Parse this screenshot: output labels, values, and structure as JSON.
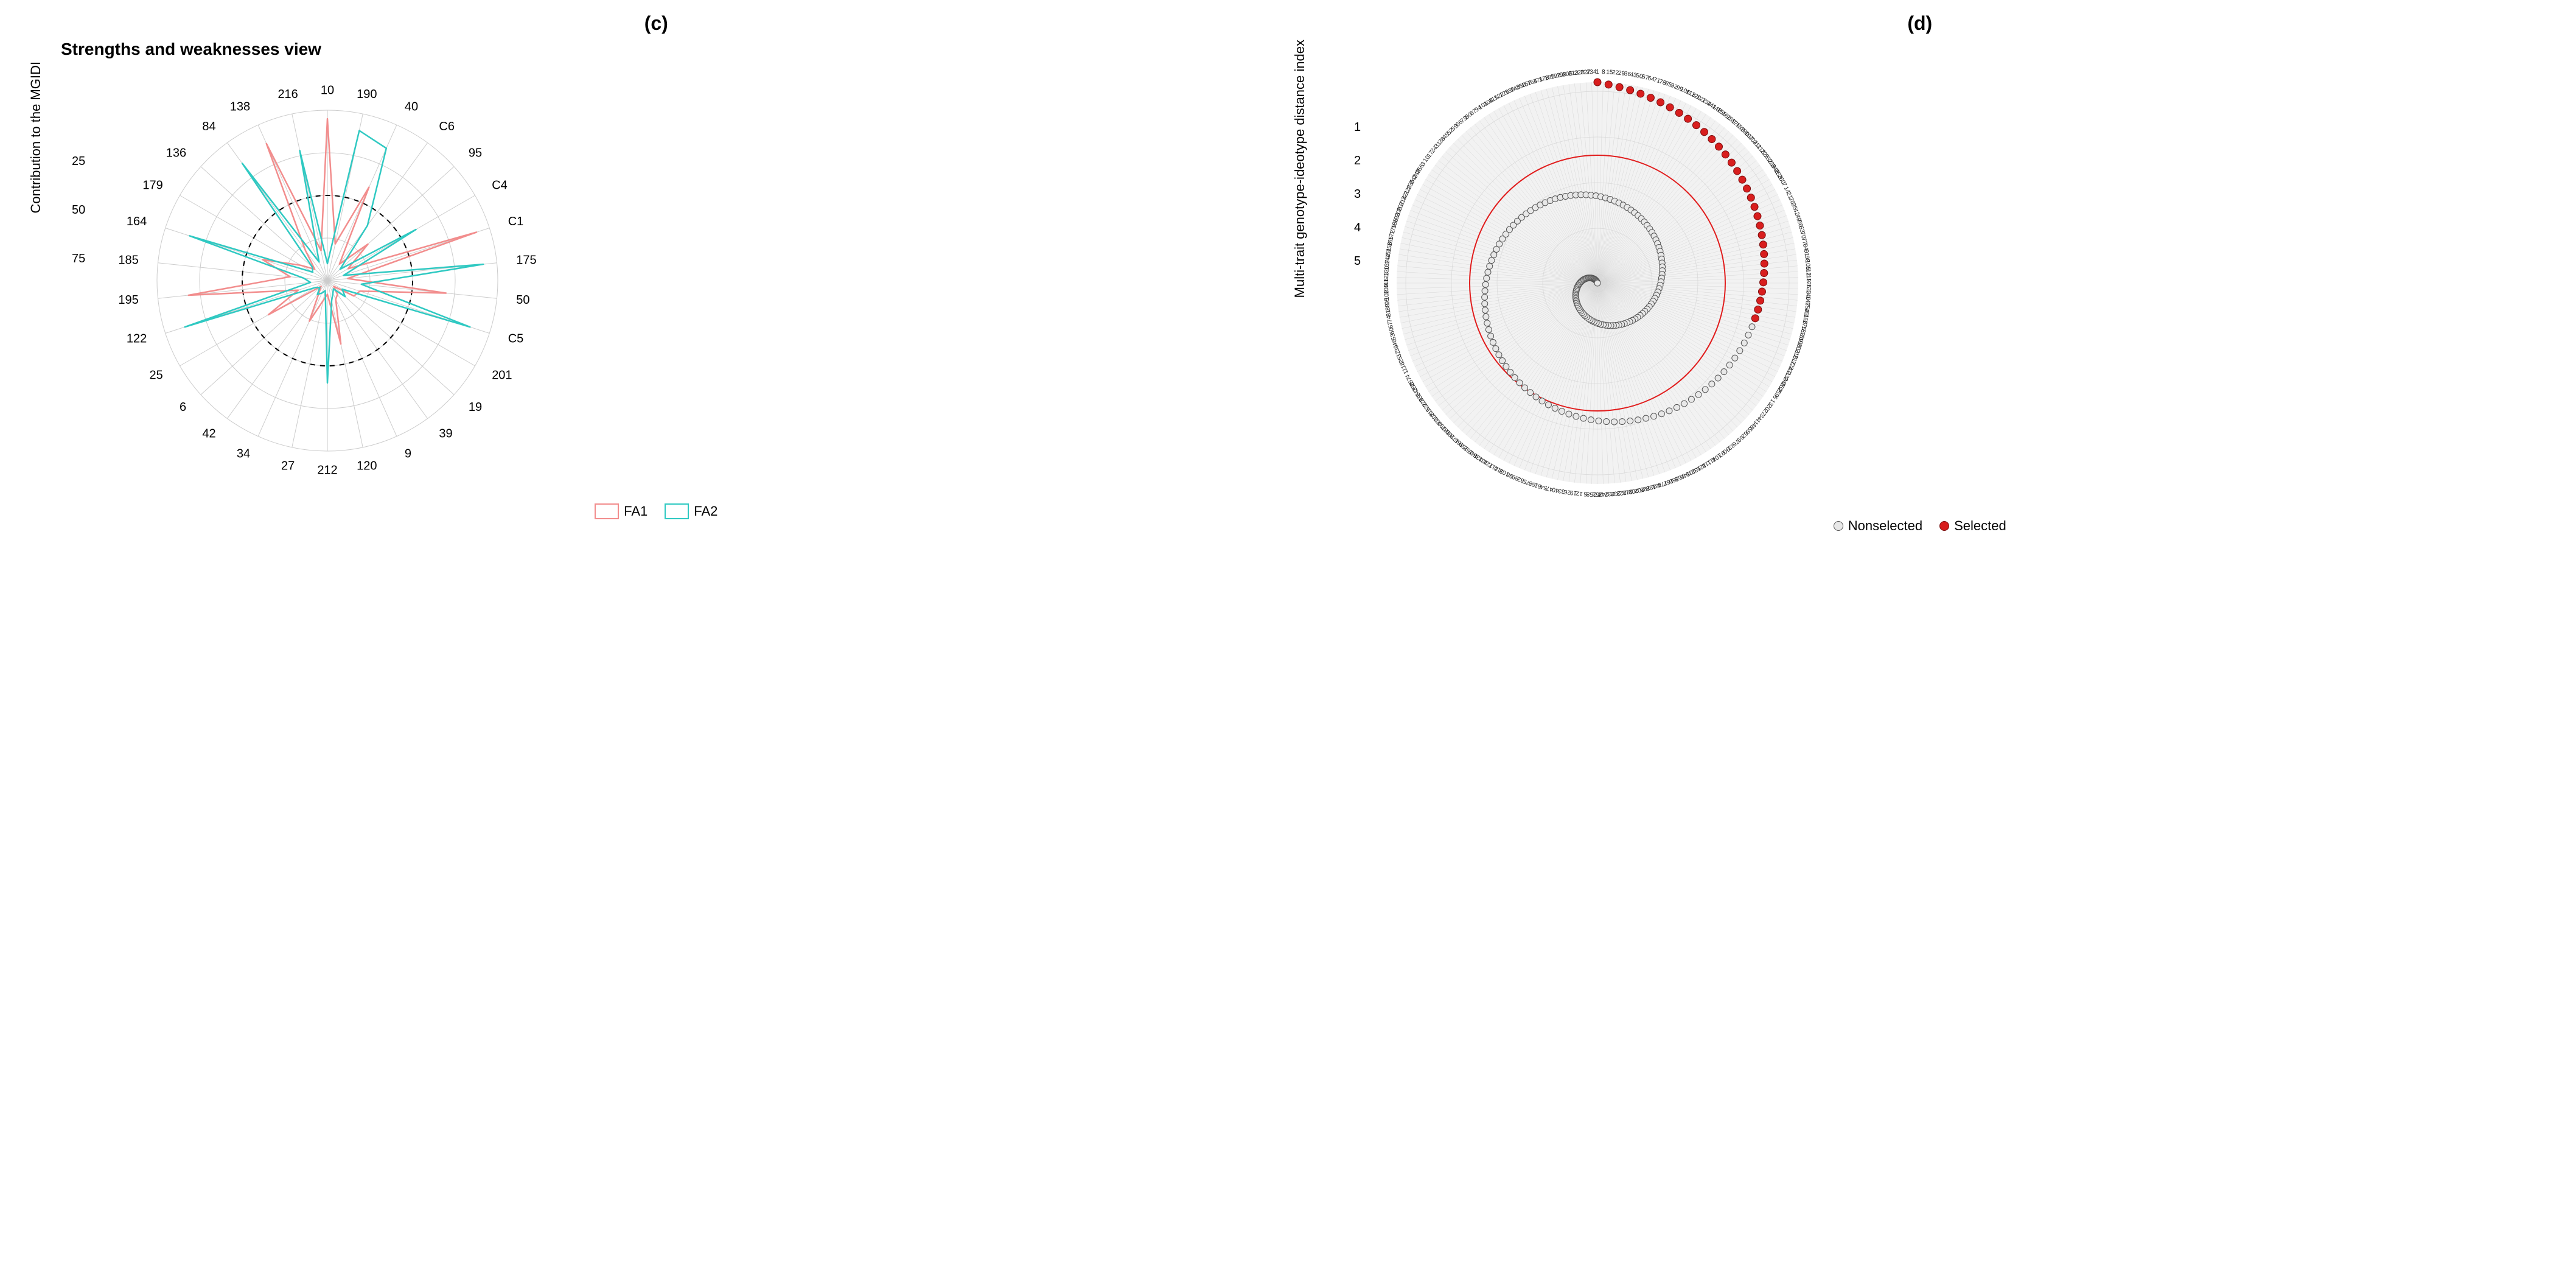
{
  "panels": {
    "left_label": "(c)",
    "right_label": "(d)"
  },
  "colors": {
    "fa1": "#f28d8d",
    "fa2": "#2fc9c2",
    "grid": "#cccccc",
    "ref_dash": "#000000",
    "spiral_nonsel_fill": "#e8e8e8",
    "spiral_nonsel_stroke": "#555555",
    "spiral_sel_fill": "#d81e1e",
    "spiral_sel_stroke": "#7a0c0c",
    "cutoff_circle": "#e11d1d",
    "spiral_bg": "#f2f2f2",
    "text": "#000000"
  },
  "fonts": {
    "panel_label_pt": 32,
    "title_pt": 28,
    "axis_label_pt": 22,
    "tick_pt": 20,
    "spoke_label_pt": 20,
    "legend_pt": 22,
    "rim_label_pt": 10
  },
  "radar": {
    "title": "Strengths and weaknesses view",
    "y_axis_label": "Contribution to the MGIDI",
    "y_ticks": [
      25,
      50,
      75
    ],
    "y_max": 100,
    "ref_circle_value": 50,
    "spoke_labels": [
      "10",
      "190",
      "40",
      "C6",
      "95",
      "C4",
      "C1",
      "175",
      "50",
      "C5",
      "201",
      "19",
      "39",
      "9",
      "120",
      "212",
      "27",
      "34",
      "42",
      "6",
      "25",
      "122",
      "195",
      "185",
      "164",
      "179",
      "136",
      "84",
      "138",
      "216"
    ],
    "series": {
      "FA1": [
        95,
        22,
        60,
        12,
        32,
        14,
        92,
        12,
        70,
        20,
        18,
        5,
        10,
        12,
        38,
        8,
        12,
        26,
        8,
        5,
        40,
        18,
        82,
        22,
        40,
        18,
        10,
        22,
        88,
        18
      ],
      "FA2": [
        10,
        90,
        85,
        40,
        10,
        60,
        10,
        92,
        20,
        88,
        10,
        14,
        6,
        8,
        12,
        60,
        6,
        8,
        10,
        6,
        8,
        88,
        10,
        14,
        85,
        10,
        12,
        85,
        12,
        78
      ]
    },
    "legend": [
      "FA1",
      "FA2"
    ]
  },
  "mgidi": {
    "y_axis_label": "Multi-trait genotype-ideotype distance index",
    "y_ticks": [
      1,
      2,
      3,
      4,
      5
    ],
    "y_min": 0.8,
    "y_max": 5.2,
    "n_points": 220,
    "n_selected": 33,
    "cutoff_value": 2.4,
    "legend": {
      "nonselected": "Nonselected",
      "selected": "Selected"
    }
  }
}
